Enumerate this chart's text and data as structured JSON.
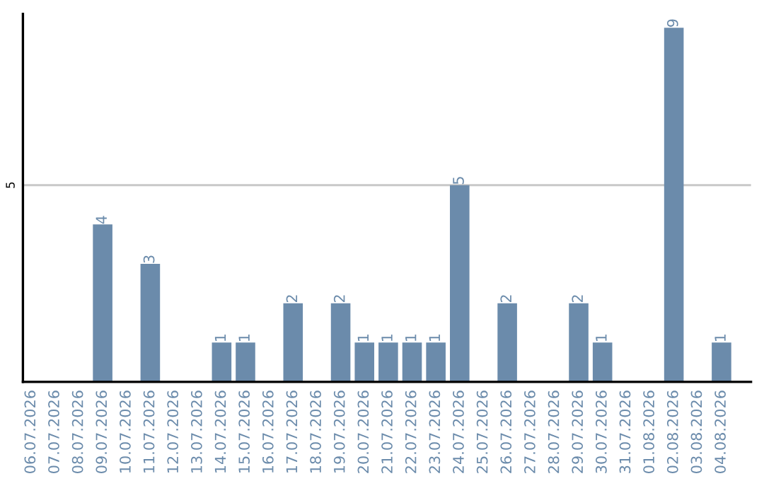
{
  "chart_data": {
    "type": "bar",
    "categories": [
      "06.07.2026",
      "07.07.2026",
      "08.07.2026",
      "09.07.2026",
      "10.07.2026",
      "11.07.2026",
      "12.07.2026",
      "13.07.2026",
      "14.07.2026",
      "15.07.2026",
      "16.07.2026",
      "17.07.2026",
      "18.07.2026",
      "19.07.2026",
      "20.07.2026",
      "21.07.2026",
      "22.07.2026",
      "23.07.2026",
      "24.07.2026",
      "25.07.2026",
      "26.07.2026",
      "27.07.2026",
      "28.07.2026",
      "29.07.2026",
      "30.07.2026",
      "31.07.2026",
      "01.08.2026",
      "02.08.2026",
      "03.08.2026",
      "04.08.2026"
    ],
    "values": [
      0,
      0,
      0,
      4,
      0,
      3,
      0,
      0,
      1,
      1,
      0,
      2,
      0,
      2,
      1,
      1,
      1,
      1,
      5,
      0,
      2,
      0,
      0,
      2,
      1,
      0,
      0,
      9,
      0,
      1
    ],
    "value_labels": [
      null,
      null,
      null,
      "4",
      null,
      "3",
      null,
      null,
      "1",
      "1",
      null,
      "2",
      null,
      "2",
      "1",
      "1",
      "1",
      "1",
      "5",
      null,
      "2",
      null,
      null,
      "2",
      "1",
      null,
      null,
      "9",
      null,
      "1"
    ],
    "color": "#6b8bab",
    "ylim": [
      0,
      9.35
    ],
    "yticks": [
      5
    ],
    "grid": "y",
    "legend": false
  }
}
